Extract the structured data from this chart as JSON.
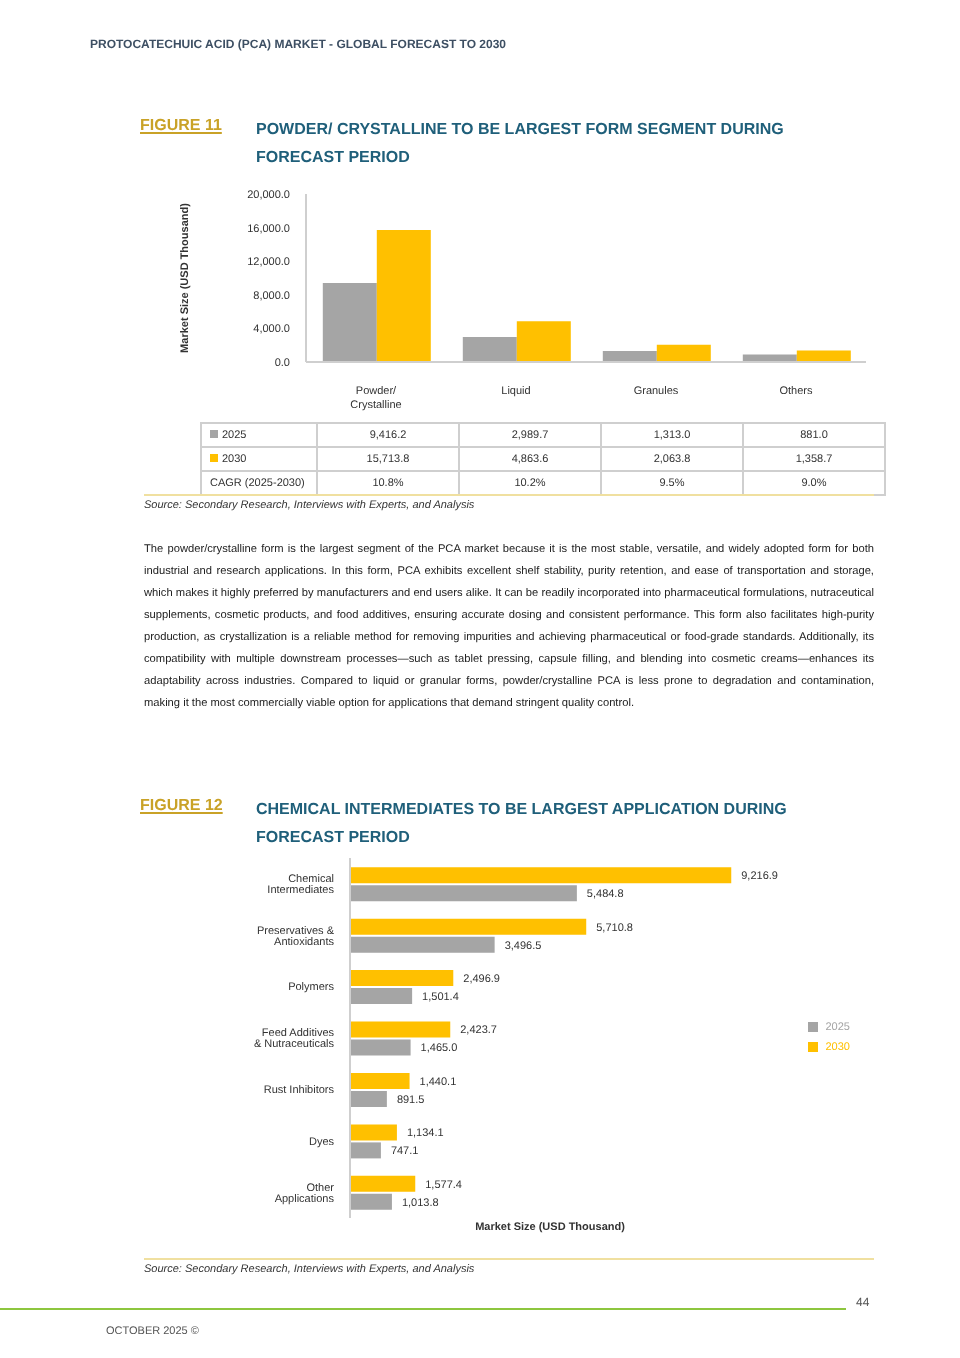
{
  "chart_data": [
    {
      "type": "bar",
      "subtitle": "FIGURE 11",
      "title": "POWDER/ CRYSTALLINE TO BE LARGEST FORM SEGMENT DURING FORECAST PERIOD",
      "ylabel": "Market Size (USD Thousand)",
      "categories": [
        "Powder/ Crystalline",
        "Liquid",
        "Granules",
        "Others"
      ],
      "series": [
        {
          "name": "2025",
          "color": "#a5a5a5",
          "values": [
            9416.2,
            2989.7,
            1313.0,
            881.0
          ],
          "value_labels": [
            "9,416.2",
            "2,989.7",
            "1,313.0",
            "881.0"
          ]
        },
        {
          "name": "2030",
          "color": "#ffc000",
          "values": [
            15713.8,
            4863.6,
            2063.8,
            1358.7
          ],
          "value_labels": [
            "15,713.8",
            "4,863.6",
            "2,063.8",
            "1,358.7"
          ]
        }
      ],
      "ylim": [
        0,
        20000
      ],
      "yticks": [
        {
          "value": 0,
          "label": "0.0"
        },
        {
          "value": 4000,
          "label": "4,000.0"
        },
        {
          "value": 8000,
          "label": "8,000.0"
        },
        {
          "value": 12000,
          "label": "12,000.0"
        },
        {
          "value": 16000,
          "label": "16,000.0"
        },
        {
          "value": 20000,
          "label": "20,000.0"
        }
      ],
      "legend": "bottom",
      "grid": false,
      "annotations": [
        "PROTOCATECHUIC ACID (PCA) MARKET - GLOBAL FORECAST TO 2030",
        "CAGR (2025-2030)",
        "10.8%",
        "10.2%",
        "9.5%",
        "9.0%",
        "Source: Secondary Research, Interviews with Experts, and Analysis",
        "The powder/crystalline form is the largest segment of the PCA market because it is the most stable, versatile, and widely adopted form for both industrial and research applications. In this form, PCA exhibits excellent shelf stability, purity retention, and ease of transportation and storage, which makes it highly preferred by manufacturers and end users alike. It can be readily incorporated into pharmaceutical formulations, nutraceutical supplements, cosmetic products, and food additives, ensuring accurate dosing and consistent performance. This form also facilitates high-purity production, as crystallization is a reliable method for removing impurities and achieving pharmaceutical or food-grade standards. Additionally, its compatibility with multiple downstream processes—such as tablet pressing, capsule filling, and blending into cosmetic creams—enhances its adaptability across industries. Compared to liquid or granular forms, powder/crystalline PCA is less prone to degradation and contamination, making it the most commercially viable option for applications that demand stringent quality control."
      ]
    },
    {
      "type": "bar",
      "orientation": "horizontal",
      "subtitle": "FIGURE 12",
      "title": "CHEMICAL INTERMEDIATES TO BE LARGEST APPLICATION DURING FORECAST PERIOD",
      "xlabel": "Market Size (USD Thousand)",
      "categories": [
        "Chemical Intermediates",
        "Preservatives & Antioxidants",
        "Polymers",
        "Feed Additives & Nutraceuticals",
        "Rust Inhibitors",
        "Dyes",
        "Other Applications"
      ],
      "series": [
        {
          "name": "2030",
          "color": "#ffc000",
          "values": [
            9216.9,
            5710.8,
            2496.9,
            2423.7,
            1440.1,
            1134.1,
            1577.4
          ],
          "value_labels": [
            "9,216.9",
            "5,710.8",
            "2,496.9",
            "2,423.7",
            "1,440.1",
            "1,134.1",
            "1,577.4"
          ]
        },
        {
          "name": "2025",
          "color": "#a5a5a5",
          "values": [
            5484.8,
            3496.5,
            1501.4,
            1465.0,
            891.5,
            747.1,
            1013.8
          ],
          "value_labels": [
            "5,484.8",
            "3,496.5",
            "1,501.4",
            "1,465.0",
            "891.5",
            "747.1",
            "1,013.8"
          ]
        }
      ],
      "legend": "right",
      "grid": false,
      "annotations": [
        "Source: Secondary Research, Interviews with Experts, and Analysis",
        "OCTOBER 2025 ©",
        "44"
      ]
    }
  ]
}
